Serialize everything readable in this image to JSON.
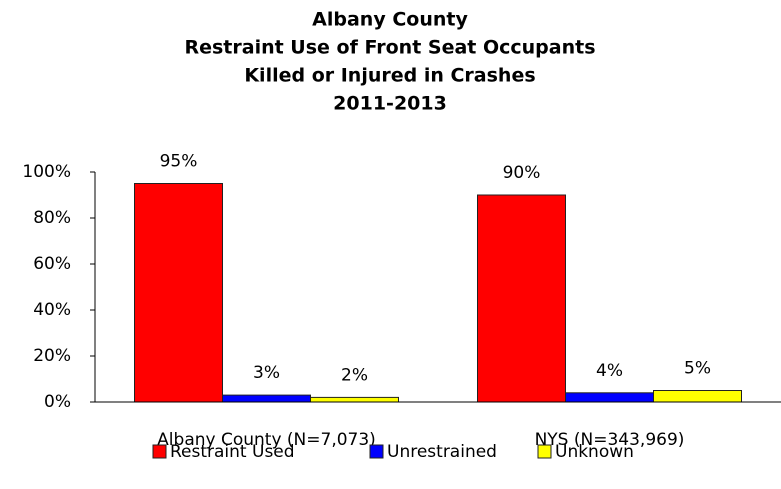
{
  "chart_data": {
    "type": "bar",
    "title": [
      "Albany County",
      "Restraint Use of Front Seat Occupants",
      "Killed or Injured in Crashes",
      "2011-2013"
    ],
    "categories": [
      "Albany County (N=7,073)",
      "NYS (N=343,969)"
    ],
    "series": [
      {
        "name": "Restraint Used",
        "color": "#ff0000",
        "values": [
          95,
          90
        ],
        "value_labels": [
          "95%",
          "90%"
        ]
      },
      {
        "name": "Unrestrained",
        "color": "#0000ff",
        "values": [
          3,
          4
        ],
        "value_labels": [
          "3%",
          "4%"
        ]
      },
      {
        "name": "Unknown",
        "color": "#ffff00",
        "values": [
          2,
          5
        ],
        "value_labels": [
          "2%",
          "5%"
        ]
      }
    ],
    "ylim": [
      0,
      100
    ],
    "yticks": [
      {
        "value": 0,
        "label": "0%"
      },
      {
        "value": 20,
        "label": "20%"
      },
      {
        "value": 40,
        "label": "40%"
      },
      {
        "value": 60,
        "label": "60%"
      },
      {
        "value": 80,
        "label": "80%"
      },
      {
        "value": 100,
        "label": "100%"
      }
    ],
    "grid": false,
    "legend": "bottom"
  }
}
